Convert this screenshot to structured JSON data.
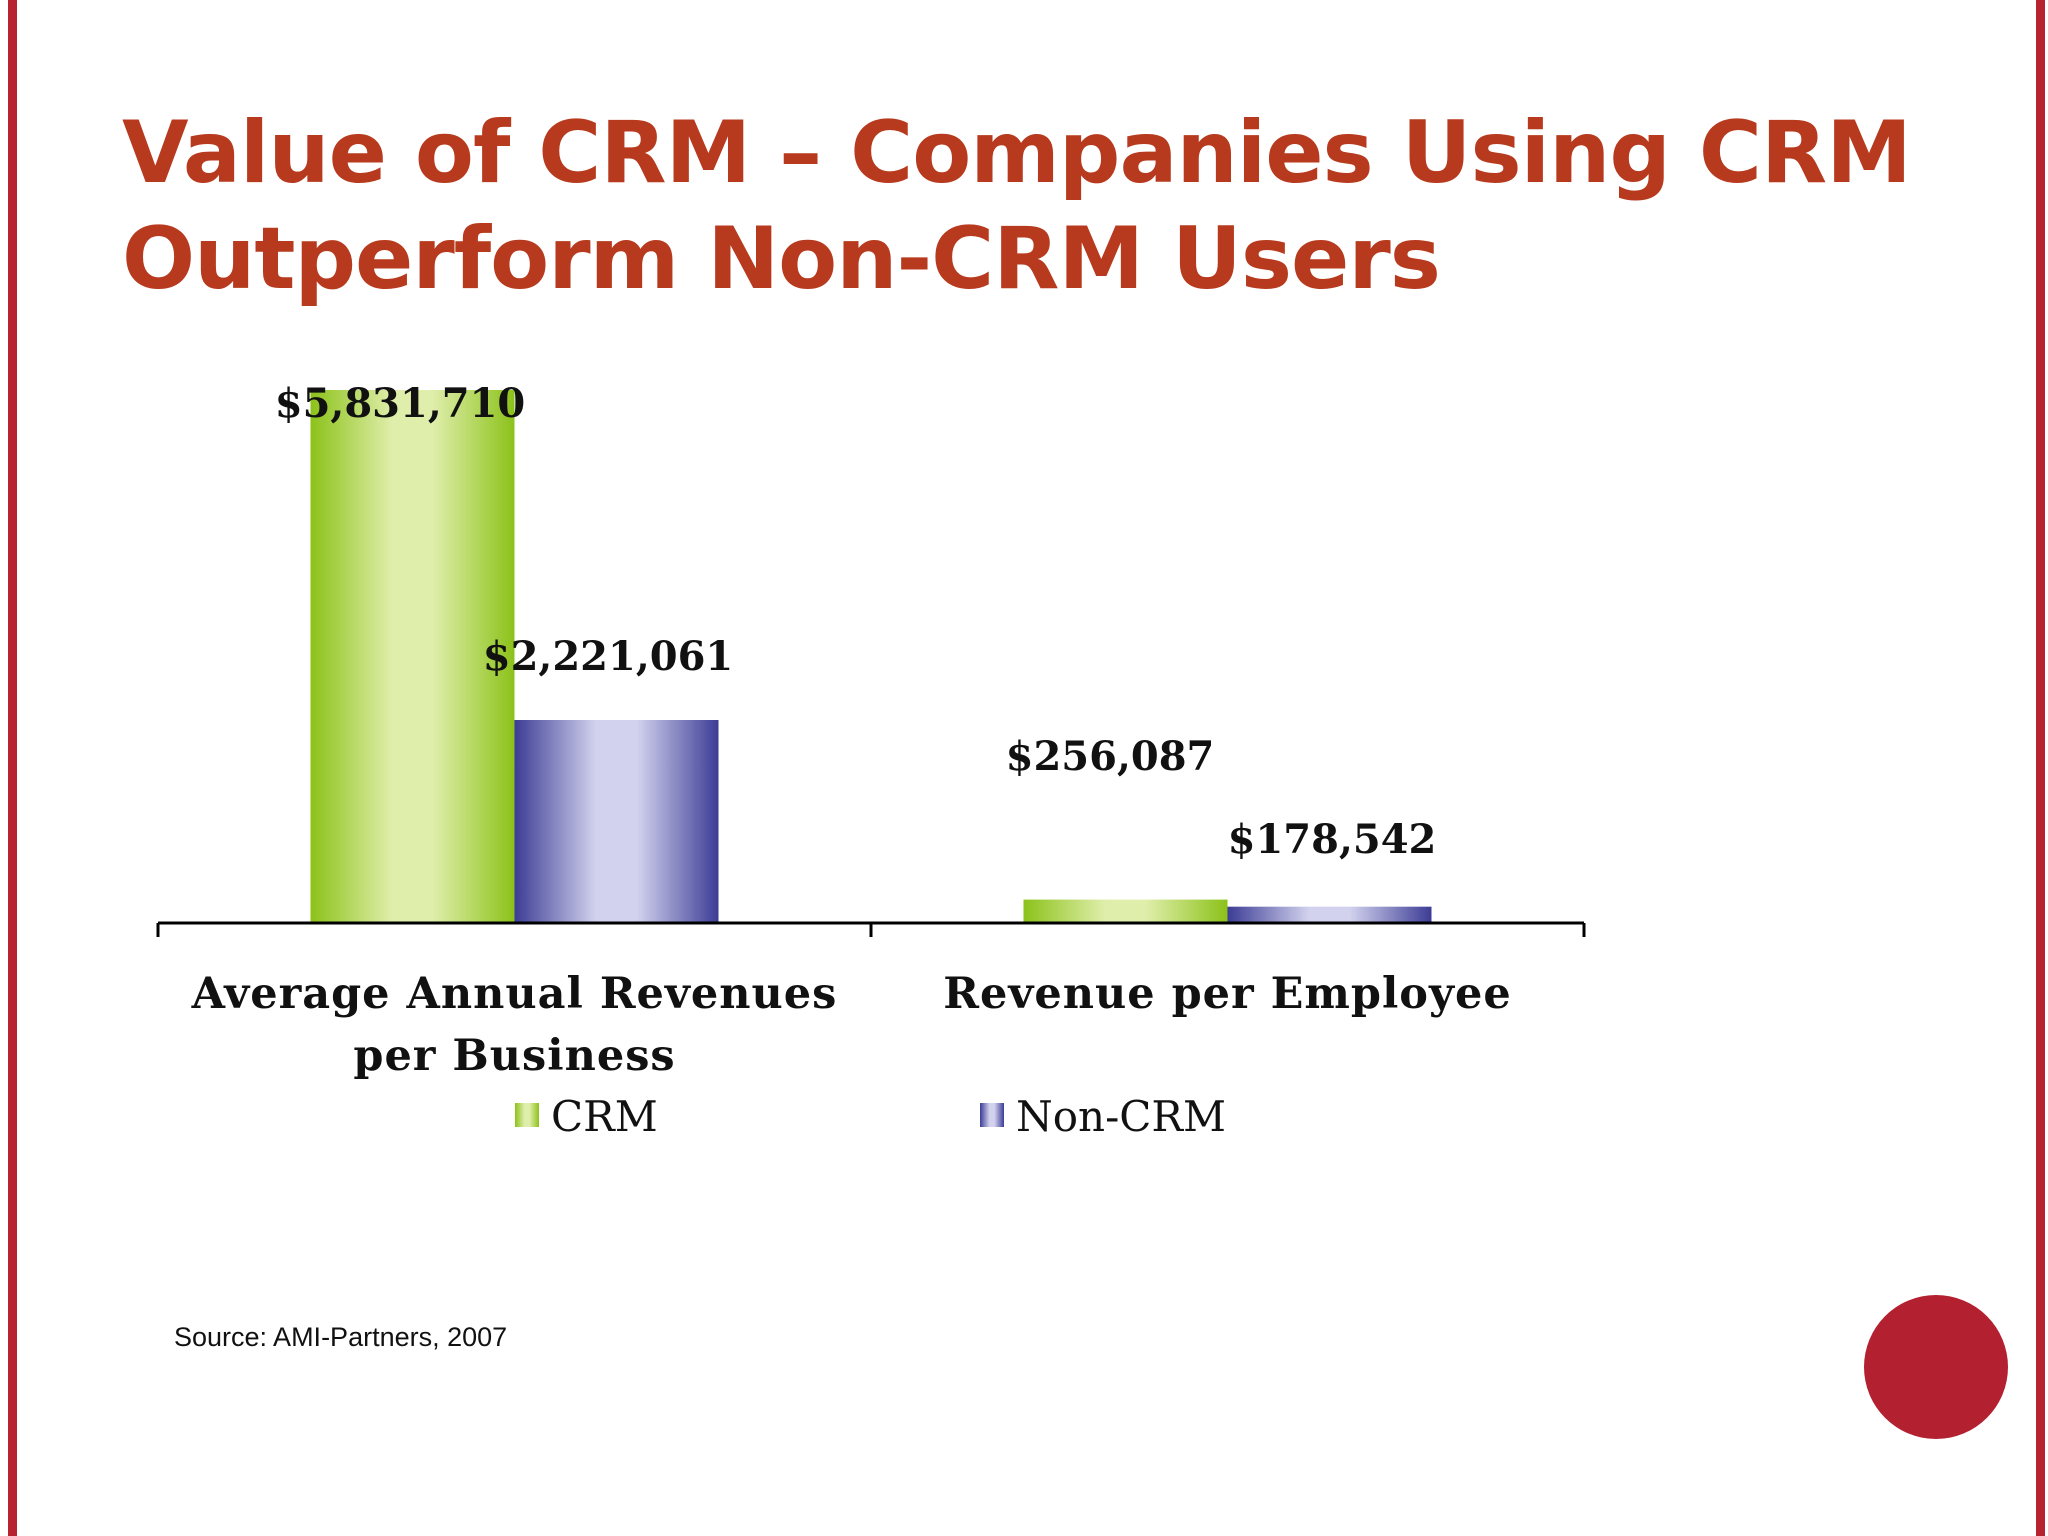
{
  "slide": {
    "title_line1": "Value of CRM – Companies Using CRM",
    "title_line2": "Outperform Non-CRM Users",
    "source": "Source: AMI-Partners, 2007"
  },
  "colors": {
    "accent": "#b72430",
    "title": "#b83a1e",
    "crm_green": "#8cc21a",
    "crm_green_light": "#dfeeaa",
    "noncrm_blue": "#3c3c96",
    "noncrm_blue_light": "#d2d2ee"
  },
  "chart_data": {
    "type": "bar",
    "categories": [
      [
        "Average Annual Revenues",
        "per Business"
      ],
      [
        "Revenue per Employee"
      ]
    ],
    "series": [
      {
        "name": "CRM",
        "values": [
          5831710,
          256087
        ],
        "labels": [
          "$5,831,710",
          "$256,087"
        ]
      },
      {
        "name": "Non-CRM",
        "values": [
          2221061,
          178542
        ],
        "labels": [
          "$2,221,061",
          "$178,542"
        ]
      }
    ],
    "ylim": [
      0,
      5831710
    ],
    "grid": false,
    "legend": "bottom",
    "title": "",
    "xlabel": "",
    "ylabel": ""
  }
}
